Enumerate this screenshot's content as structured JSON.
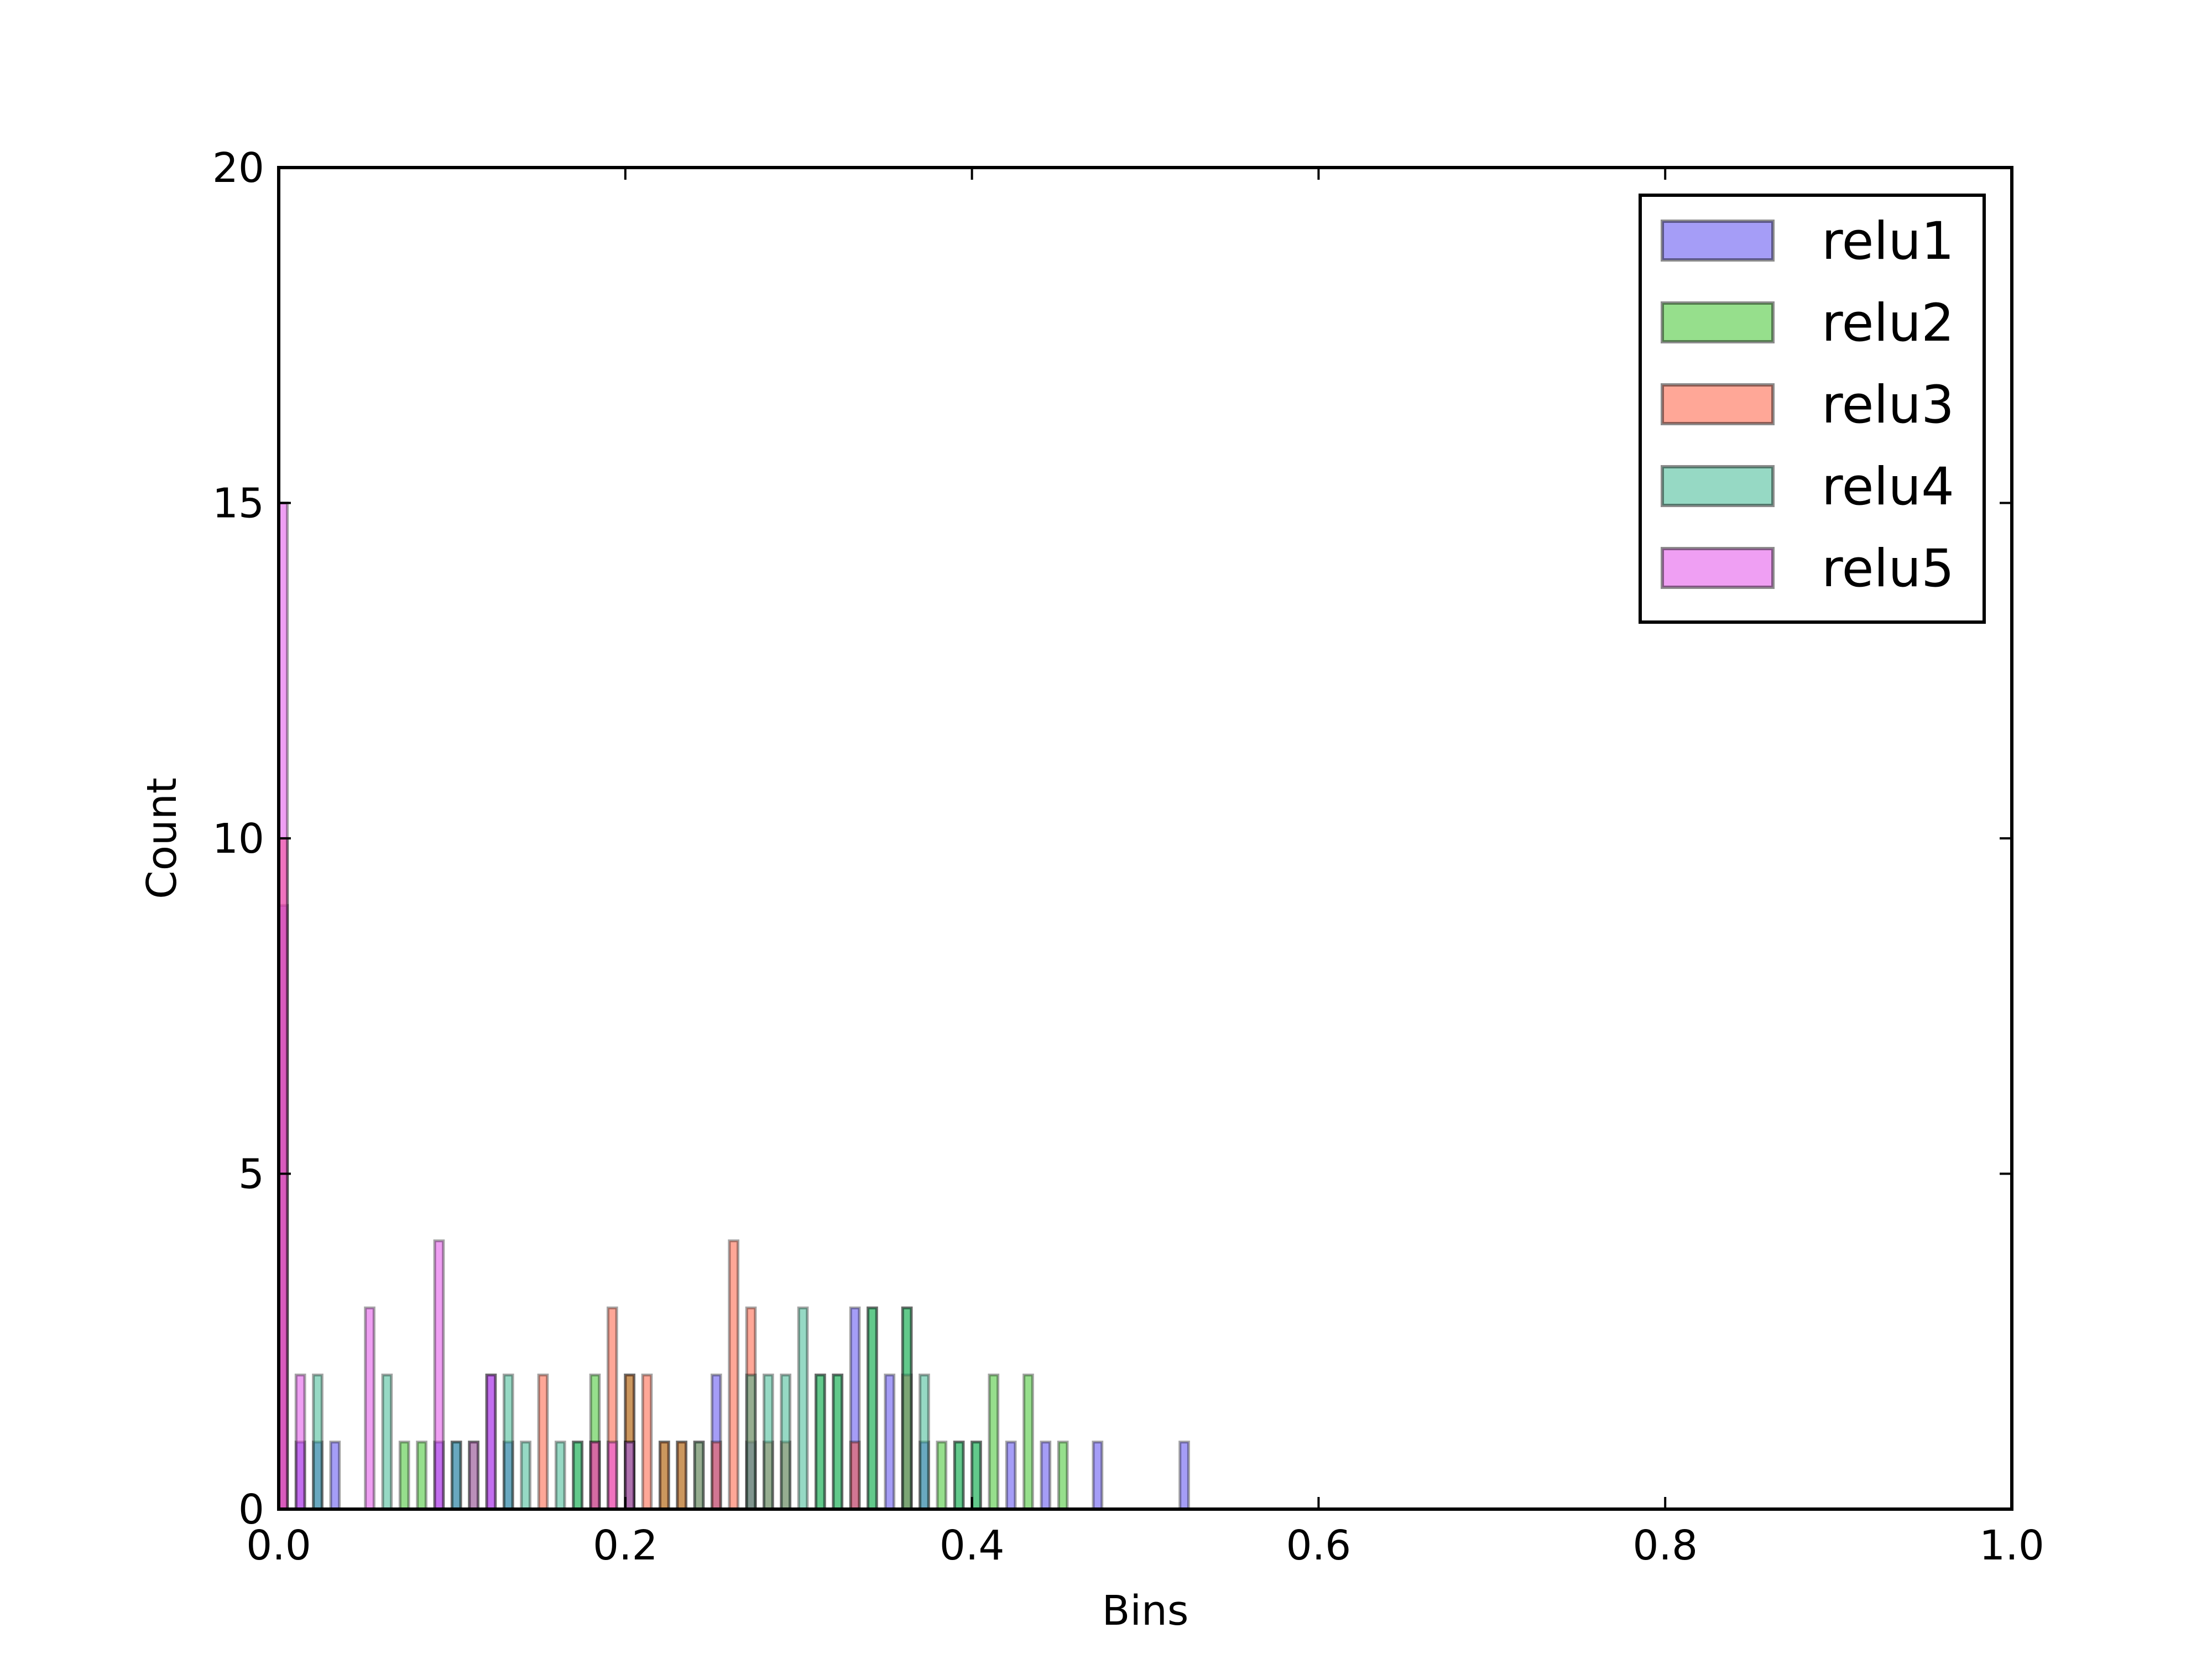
{
  "chart_data": {
    "type": "bar",
    "subtype": "overlaid-histogram",
    "title": "",
    "xlabel": "Bins",
    "ylabel": "Count",
    "xlim": [
      0.0,
      1.0
    ],
    "ylim": [
      0,
      20
    ],
    "bin_width": 0.005,
    "xticks": [
      "0.0",
      "0.2",
      "0.4",
      "0.6",
      "0.8",
      "1.0"
    ],
    "yticks": [
      "0",
      "5",
      "10",
      "15",
      "20"
    ],
    "grid": false,
    "legend_position": "top-right",
    "series": [
      {
        "name": "relu1",
        "color": "#4b3cf0",
        "bins": [
          {
            "x": 0.0,
            "count": 9
          },
          {
            "x": 0.01,
            "count": 1
          },
          {
            "x": 0.02,
            "count": 1
          },
          {
            "x": 0.03,
            "count": 1
          },
          {
            "x": 0.09,
            "count": 1
          },
          {
            "x": 0.1,
            "count": 1
          },
          {
            "x": 0.12,
            "count": 2
          },
          {
            "x": 0.13,
            "count": 1
          },
          {
            "x": 0.25,
            "count": 2
          },
          {
            "x": 0.27,
            "count": 1
          },
          {
            "x": 0.33,
            "count": 3
          },
          {
            "x": 0.35,
            "count": 2
          },
          {
            "x": 0.37,
            "count": 1
          },
          {
            "x": 0.42,
            "count": 1
          },
          {
            "x": 0.44,
            "count": 1
          },
          {
            "x": 0.47,
            "count": 1
          },
          {
            "x": 0.52,
            "count": 1
          }
        ]
      },
      {
        "name": "relu2",
        "color": "#2ec01a",
        "bins": [
          {
            "x": 0.07,
            "count": 1
          },
          {
            "x": 0.08,
            "count": 1
          },
          {
            "x": 0.11,
            "count": 1
          },
          {
            "x": 0.17,
            "count": 1
          },
          {
            "x": 0.18,
            "count": 2
          },
          {
            "x": 0.2,
            "count": 2
          },
          {
            "x": 0.22,
            "count": 1
          },
          {
            "x": 0.23,
            "count": 1
          },
          {
            "x": 0.31,
            "count": 2
          },
          {
            "x": 0.32,
            "count": 2
          },
          {
            "x": 0.34,
            "count": 3
          },
          {
            "x": 0.36,
            "count": 3
          },
          {
            "x": 0.38,
            "count": 1
          },
          {
            "x": 0.39,
            "count": 1
          },
          {
            "x": 0.4,
            "count": 1
          },
          {
            "x": 0.41,
            "count": 2
          },
          {
            "x": 0.43,
            "count": 2
          },
          {
            "x": 0.45,
            "count": 1
          }
        ]
      },
      {
        "name": "relu3",
        "color": "#ff5030",
        "bins": [
          {
            "x": 0.0,
            "count": 10
          },
          {
            "x": 0.15,
            "count": 2
          },
          {
            "x": 0.18,
            "count": 1
          },
          {
            "x": 0.19,
            "count": 3
          },
          {
            "x": 0.2,
            "count": 2
          },
          {
            "x": 0.21,
            "count": 2
          },
          {
            "x": 0.22,
            "count": 1
          },
          {
            "x": 0.23,
            "count": 1
          },
          {
            "x": 0.24,
            "count": 1
          },
          {
            "x": 0.25,
            "count": 1
          },
          {
            "x": 0.26,
            "count": 4
          },
          {
            "x": 0.27,
            "count": 3
          },
          {
            "x": 0.28,
            "count": 1
          },
          {
            "x": 0.29,
            "count": 1
          },
          {
            "x": 0.33,
            "count": 1
          },
          {
            "x": 0.36,
            "count": 2
          }
        ]
      },
      {
        "name": "relu4",
        "color": "#2eb48a",
        "bins": [
          {
            "x": 0.02,
            "count": 2
          },
          {
            "x": 0.06,
            "count": 2
          },
          {
            "x": 0.1,
            "count": 1
          },
          {
            "x": 0.13,
            "count": 2
          },
          {
            "x": 0.14,
            "count": 1
          },
          {
            "x": 0.16,
            "count": 1
          },
          {
            "x": 0.17,
            "count": 1
          },
          {
            "x": 0.2,
            "count": 1
          },
          {
            "x": 0.24,
            "count": 1
          },
          {
            "x": 0.27,
            "count": 2
          },
          {
            "x": 0.28,
            "count": 2
          },
          {
            "x": 0.29,
            "count": 2
          },
          {
            "x": 0.3,
            "count": 3
          },
          {
            "x": 0.31,
            "count": 2
          },
          {
            "x": 0.32,
            "count": 2
          },
          {
            "x": 0.34,
            "count": 3
          },
          {
            "x": 0.36,
            "count": 3
          },
          {
            "x": 0.37,
            "count": 2
          },
          {
            "x": 0.39,
            "count": 1
          },
          {
            "x": 0.4,
            "count": 1
          }
        ]
      },
      {
        "name": "relu5",
        "color": "#e040e8",
        "bins": [
          {
            "x": 0.0,
            "count": 15
          },
          {
            "x": 0.01,
            "count": 2
          },
          {
            "x": 0.05,
            "count": 3
          },
          {
            "x": 0.09,
            "count": 4
          },
          {
            "x": 0.11,
            "count": 1
          },
          {
            "x": 0.12,
            "count": 2
          },
          {
            "x": 0.18,
            "count": 1
          },
          {
            "x": 0.19,
            "count": 1
          },
          {
            "x": 0.2,
            "count": 1
          }
        ]
      }
    ]
  }
}
